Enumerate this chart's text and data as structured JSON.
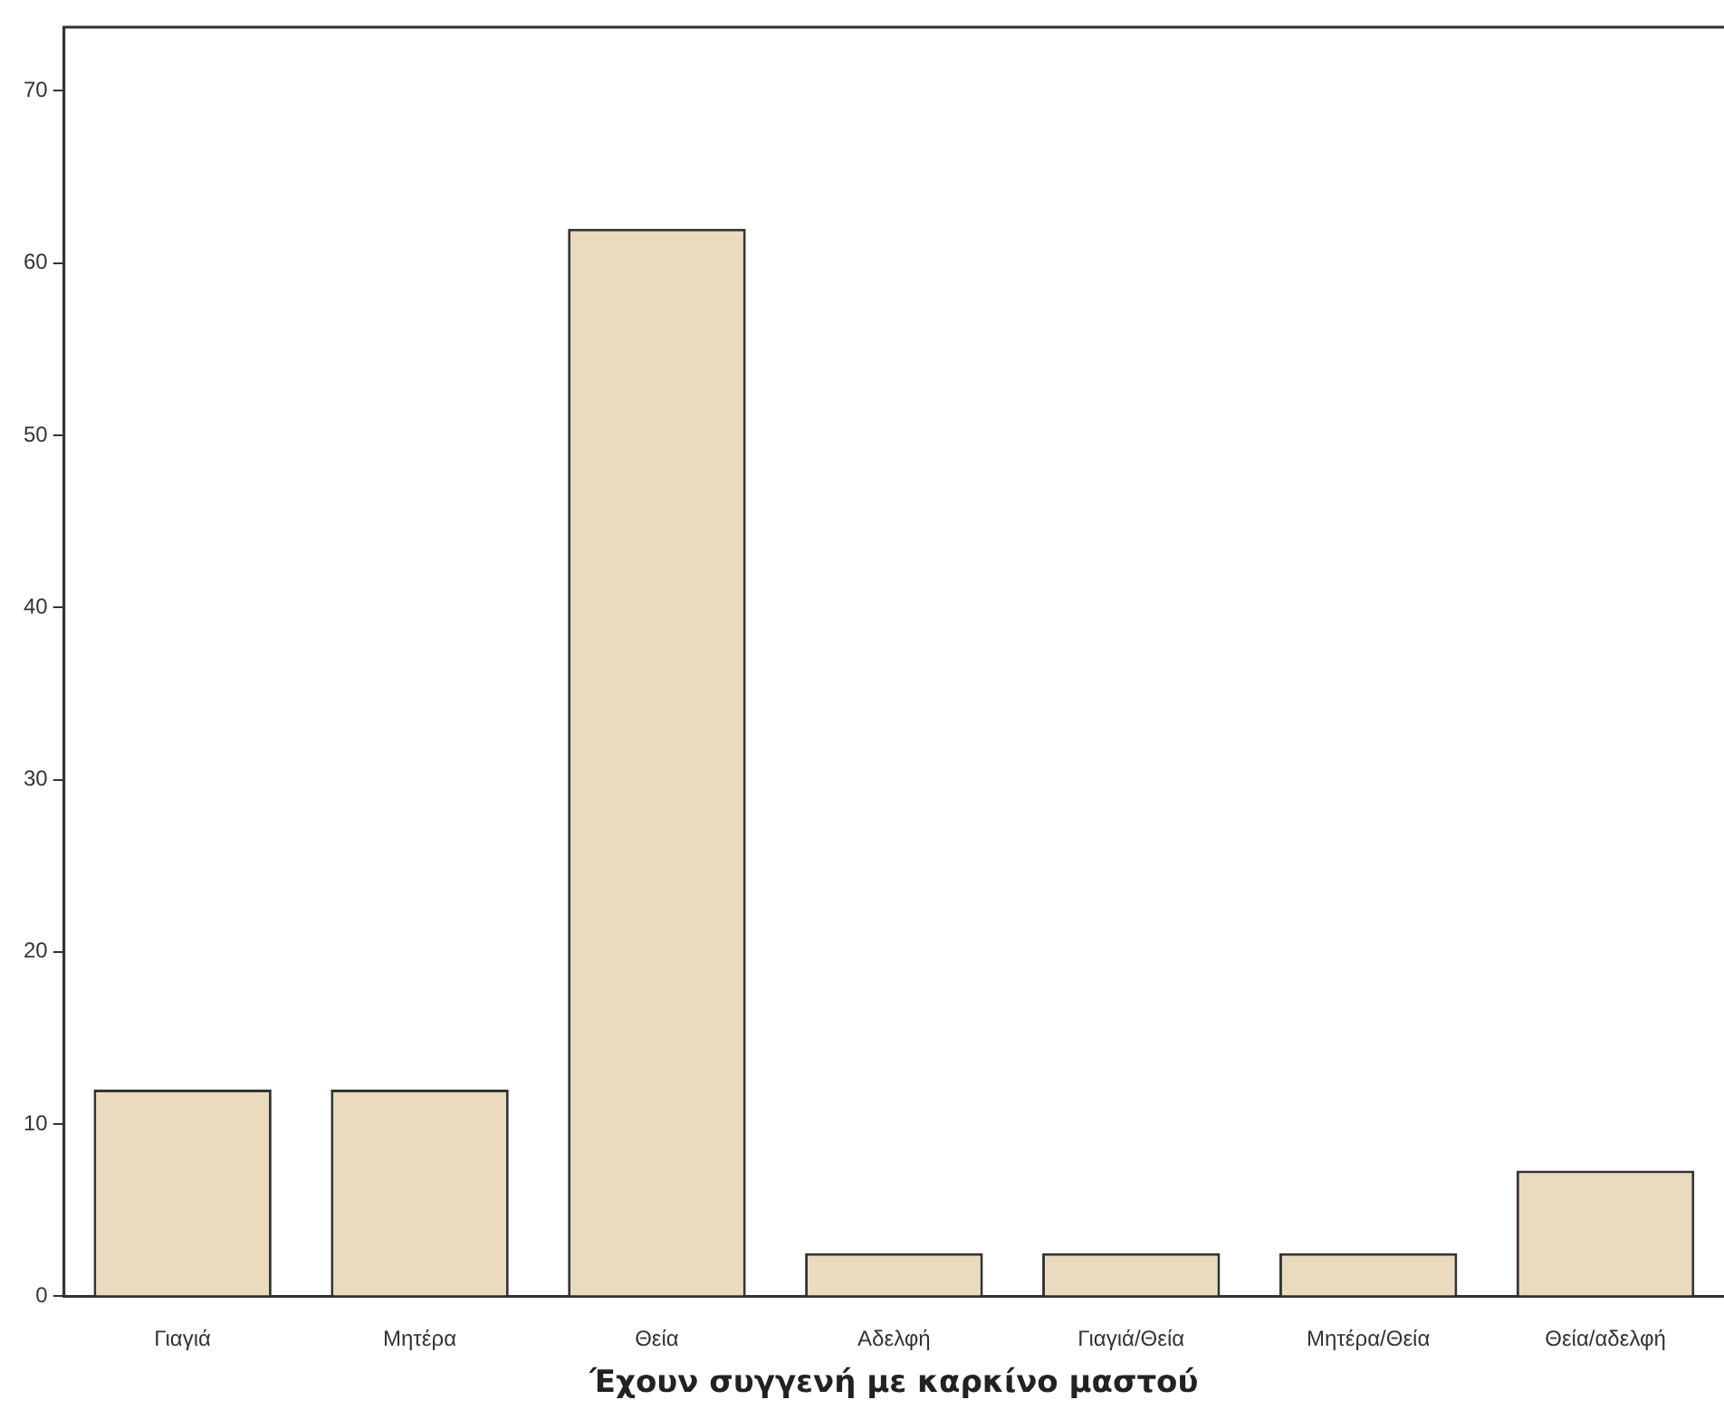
{
  "chart_data": {
    "type": "bar",
    "xlabel": "Έχουν συγγενή με καρκίνο μαστού",
    "categories": [
      "Γιαγιά",
      "Μητέρα",
      "Θεία",
      "Αδελφή",
      "Γιαγιά/Θεία",
      "Μητέρα/Θεία",
      "Θεία/αδελφή"
    ],
    "values": [
      12,
      12,
      62,
      2.5,
      2.5,
      2.5,
      7.3
    ],
    "color": "#eadbbf",
    "ylim": [
      0,
      73.7
    ],
    "yticks": [
      0,
      10,
      20,
      30,
      40,
      50,
      60,
      70
    ],
    "grid": false,
    "legend": false
  }
}
